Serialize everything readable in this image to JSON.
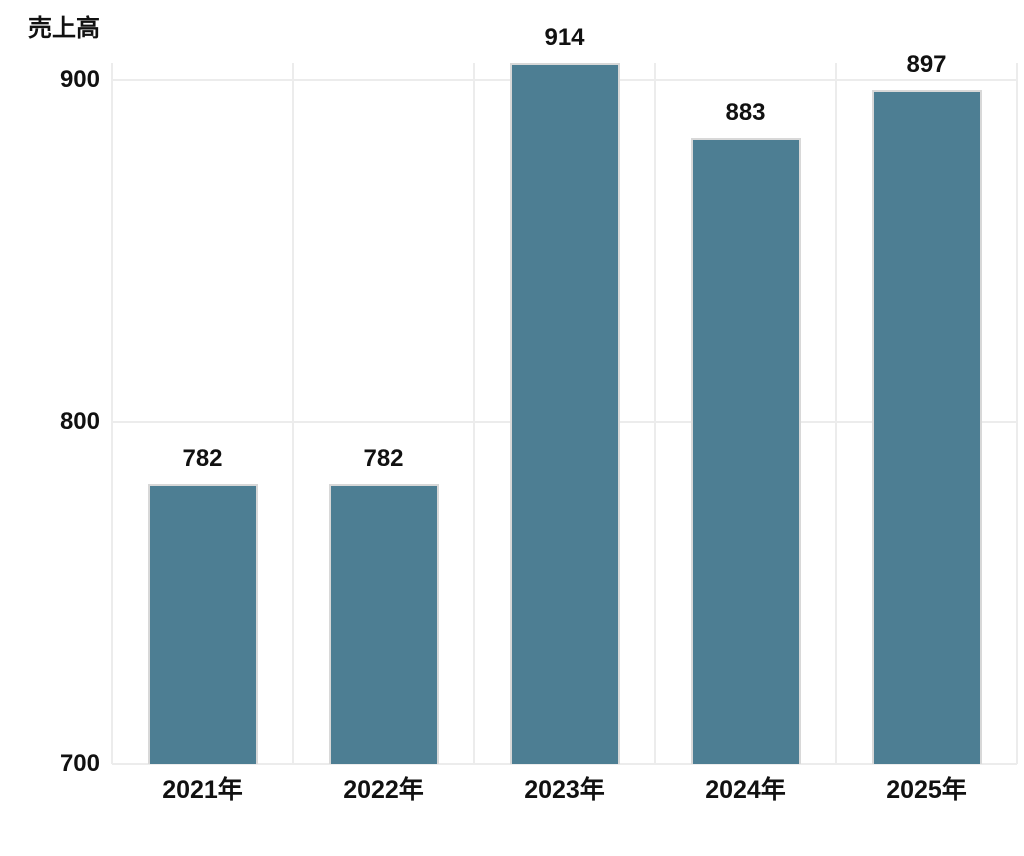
{
  "chart_data": {
    "type": "bar",
    "title": "",
    "ylabel": "売上高",
    "xlabel": "",
    "categories": [
      "2021年",
      "2022年",
      "2023年",
      "2024年",
      "2025年"
    ],
    "values": [
      782,
      782,
      914,
      883,
      897
    ],
    "data_labels": [
      "782",
      "782",
      "914",
      "883",
      "897"
    ],
    "yticks": [
      900,
      800,
      700
    ],
    "ylim": [
      700,
      905
    ],
    "grid": true,
    "legend": false,
    "bar_clipped_at_top": "914",
    "colors": {
      "bar_fill": "#4d7e93",
      "bar_border": "#d8d8d8",
      "gridline": "#ececec",
      "text": "#111111",
      "background": "#ffffff"
    }
  }
}
